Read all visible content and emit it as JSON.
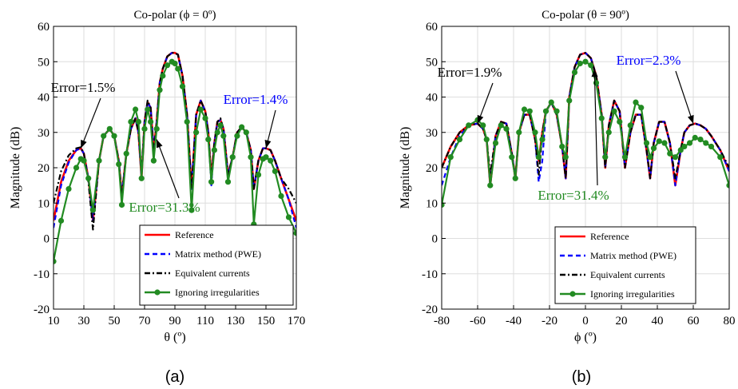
{
  "chart_data": [
    {
      "type": "line",
      "panel_label": "(a)",
      "title": "Co-polar (ϕ = 0º)",
      "xlabel": "θ (º)",
      "ylabel": "Magnitude (dB)",
      "xlim": [
        10,
        170
      ],
      "ylim": [
        -20,
        60
      ],
      "xticks": [
        "10",
        "30",
        "50",
        "70",
        "90",
        "110",
        "130",
        "150",
        "170"
      ],
      "yticks": [
        "-20",
        "-10",
        "0",
        "10",
        "20",
        "30",
        "40",
        "50",
        "60"
      ],
      "grid": true,
      "legend_position": "bottom-right",
      "x": [
        10,
        15,
        20,
        25,
        28,
        30,
        33,
        36,
        40,
        43,
        47,
        50,
        53,
        55,
        58,
        61,
        64,
        66,
        68,
        70,
        72,
        74,
        76,
        78,
        80,
        82,
        85,
        88,
        90,
        92,
        95,
        98,
        101,
        104,
        107,
        110,
        112,
        114,
        116,
        118,
        120,
        122,
        125,
        128,
        131,
        134,
        137,
        140,
        142,
        145,
        148,
        150,
        153,
        156,
        160,
        165,
        170
      ],
      "series": [
        {
          "name": "Reference",
          "color": "#ff0000",
          "dash": "solid",
          "values": [
            5,
            16,
            22,
            25,
            25.5,
            24,
            17,
            5,
            22,
            29,
            31,
            29,
            22,
            12,
            24,
            31,
            34,
            30,
            17,
            33,
            38.5,
            37,
            25,
            33,
            44,
            48,
            51.5,
            52.5,
            52.5,
            52,
            46,
            35,
            14,
            35,
            39,
            36,
            30,
            17,
            27,
            33,
            33.5,
            31,
            18,
            23,
            30,
            31.5,
            30,
            25,
            14,
            22,
            25.5,
            25.5,
            25,
            22,
            17,
            11,
            5
          ]
        },
        {
          "name": "Matrix method (PWE)",
          "color": "#0000ff",
          "dash": "6,4",
          "values": [
            3,
            15,
            21.5,
            25,
            25.5,
            24,
            17,
            5,
            22,
            29,
            31,
            29,
            22,
            12,
            24,
            31,
            34,
            30,
            17,
            33,
            38.5,
            37,
            25,
            33,
            44,
            48,
            51.5,
            52.5,
            52.5,
            52,
            46,
            35,
            14,
            35,
            39,
            36,
            30,
            15,
            27,
            33,
            33.5,
            31,
            18,
            23,
            30,
            31.5,
            30,
            25,
            14,
            22,
            25.5,
            25.5,
            25,
            22,
            17,
            11,
            3
          ]
        },
        {
          "name": "Equivalent currents",
          "color": "#000000",
          "dash": "7,3,2,3",
          "values": [
            10,
            19,
            23.5,
            25.5,
            25.8,
            24,
            16,
            2.5,
            22,
            29,
            31,
            29,
            22,
            12,
            24,
            31,
            34,
            30,
            18,
            33,
            39,
            37,
            24,
            33,
            44,
            48,
            51.5,
            52.5,
            52.5,
            52,
            46,
            35,
            14,
            35,
            39,
            36,
            30,
            17,
            27,
            33,
            34,
            31,
            18,
            23,
            30,
            31.5,
            30,
            25,
            14,
            22,
            25.5,
            25.5,
            25,
            22,
            17,
            14,
            10
          ]
        },
        {
          "name": "Ignoring irregularities",
          "color": "#228b22",
          "dash": "solid",
          "markers": true,
          "values": [
            -6.5,
            5,
            14,
            20,
            22.5,
            22,
            17,
            8,
            22,
            29,
            31,
            29,
            21,
            9.5,
            24,
            33,
            36.5,
            33,
            17,
            31,
            36.5,
            33,
            22,
            31,
            42,
            46,
            49,
            50,
            49.5,
            48,
            43,
            33,
            8,
            30,
            36.5,
            34,
            28,
            16,
            25,
            30,
            32,
            29,
            16,
            23,
            29,
            31.5,
            30,
            23,
            4,
            18,
            22.5,
            23,
            22,
            19,
            12,
            6,
            1.5
          ]
        }
      ],
      "annotations": [
        {
          "text": "Error=1.5%",
          "color": "#000000",
          "x": 28,
          "y": 25.5
        },
        {
          "text": "Error=1.4%",
          "color": "#0000ff",
          "x": 150,
          "y": 25.5
        },
        {
          "text": "Error=31.3%",
          "color": "#228b22",
          "x": 78,
          "y": 28
        }
      ]
    },
    {
      "type": "line",
      "panel_label": "(b)",
      "title": "Co-polar (θ = 90º)",
      "xlabel": "ϕ (º)",
      "ylabel": "Magnitude (dB)",
      "xlim": [
        -80,
        80
      ],
      "ylim": [
        -20,
        60
      ],
      "xticks": [
        "-80",
        "-60",
        "-40",
        "-20",
        "0",
        "20",
        "40",
        "60",
        "80"
      ],
      "yticks": [
        "-20",
        "-10",
        "0",
        "10",
        "20",
        "30",
        "40",
        "50",
        "60"
      ],
      "grid": true,
      "legend_position": "bottom-right",
      "x": [
        -80,
        -75,
        -70,
        -65,
        -60,
        -57,
        -55,
        -53,
        -50,
        -47,
        -44,
        -41,
        -39,
        -37,
        -34,
        -31,
        -28,
        -26,
        -24,
        -22,
        -19,
        -16,
        -13,
        -11,
        -9,
        -6,
        -3,
        0,
        3,
        6,
        9,
        11,
        13,
        16,
        19,
        22,
        25,
        28,
        31,
        34,
        36,
        38,
        41,
        44,
        47,
        50,
        53,
        55,
        58,
        61,
        64,
        67,
        70,
        75,
        80
      ],
      "series": [
        {
          "name": "Reference",
          "color": "#ff0000",
          "dash": "solid",
          "values": [
            20,
            26,
            30,
            32,
            32.5,
            31,
            28,
            15,
            29,
            33,
            32.5,
            24,
            17,
            30,
            35,
            35,
            28,
            22,
            30,
            36,
            38.5,
            35,
            26,
            17,
            40,
            48.5,
            52,
            52.5,
            51,
            46,
            35,
            20,
            32,
            39,
            36,
            20,
            30,
            35,
            35,
            25,
            17,
            27,
            33,
            33,
            27,
            15,
            25,
            30,
            32,
            32.5,
            32,
            31,
            29,
            25,
            19
          ]
        },
        {
          "name": "Matrix method (PWE)",
          "color": "#0000ff",
          "dash": "6,4",
          "values": [
            15,
            23,
            29,
            32,
            32.5,
            31,
            28,
            15,
            29,
            33,
            32.5,
            24,
            17,
            30,
            35,
            35,
            28,
            16,
            22,
            36,
            38.5,
            35,
            26,
            17,
            40,
            48.5,
            52,
            52.5,
            51,
            46,
            35,
            20,
            32,
            39,
            36,
            20,
            30,
            35,
            35,
            25,
            17,
            27,
            33,
            33,
            27,
            15,
            25,
            30,
            32,
            32.5,
            32,
            31,
            29,
            25,
            19
          ]
        },
        {
          "name": "Equivalent currents",
          "color": "#000000",
          "dash": "7,3,2,3",
          "values": [
            20,
            26,
            30,
            32,
            32.5,
            31,
            28,
            18,
            29,
            33,
            32.5,
            24,
            17,
            30,
            35,
            35,
            28,
            18,
            30,
            36,
            38.5,
            35,
            26,
            17,
            40,
            48.5,
            52,
            52.5,
            51,
            46,
            35,
            20,
            32,
            39,
            36,
            20,
            30,
            35,
            35,
            25,
            17,
            27,
            33,
            33,
            27,
            17,
            25,
            30,
            32,
            32.5,
            32,
            31,
            29,
            25,
            20
          ]
        },
        {
          "name": "Ignoring irregularities",
          "color": "#228b22",
          "dash": "solid",
          "markers": true,
          "values": [
            9.5,
            23,
            28,
            32,
            33.5,
            32,
            28,
            15,
            27,
            32,
            31,
            23,
            17,
            30,
            36.5,
            36,
            30,
            23,
            28,
            36,
            38.5,
            36,
            26,
            23,
            39,
            47,
            49.5,
            50,
            49,
            44,
            34,
            23,
            30,
            36,
            33,
            23,
            32,
            38.5,
            37,
            27,
            23,
            25.5,
            27.5,
            27,
            24,
            23,
            25,
            26,
            27,
            28.5,
            28,
            27,
            26,
            23,
            15
          ]
        }
      ],
      "annotations": [
        {
          "text": "Error=1.9%",
          "color": "#000000",
          "x": -60,
          "y": 32.5
        },
        {
          "text": "Error=2.3%",
          "color": "#0000ff",
          "x": 60,
          "y": 32.5
        },
        {
          "text": "Error=31.4%",
          "color": "#228b22",
          "x": 5,
          "y": 48
        }
      ]
    }
  ]
}
